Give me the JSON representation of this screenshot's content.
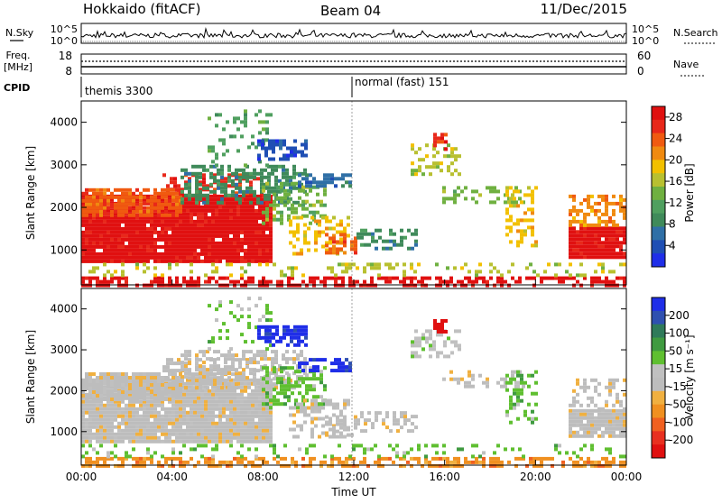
{
  "header": {
    "radar_title": "Hokkaido (fitACF)",
    "beam": "Beam 04",
    "date": "11/Dec/2015"
  },
  "top_panels": {
    "nsky": {
      "label_left": "N.Sky",
      "tick_top": "10^5",
      "tick_bottom": "10^0",
      "label_right": "N.Search",
      "tick_top_right": "10^5",
      "tick_bottom_right": "10^0"
    },
    "freq": {
      "label_left_line1": "Freq.",
      "label_left_line2": "[MHz]",
      "tick_top": "18",
      "tick_bottom": "8",
      "label_right": "Nave",
      "tick_top_right": "60",
      "tick_bottom_right": "0"
    },
    "cpid": {
      "label": "CPID",
      "modes": [
        "themis 3300",
        "normal (fast) 151"
      ]
    }
  },
  "colors": {
    "power": [
      "#1f2ee8",
      "#1f4fb4",
      "#2f6fa6",
      "#3f8a5a",
      "#4f9f5f",
      "#6fb040",
      "#b8c030",
      "#f2c000",
      "#f08a10",
      "#f05a10",
      "#e8281a",
      "#e01010"
    ],
    "velocity": [
      "#1f2ee8",
      "#2f50b0",
      "#2f7a5a",
      "#3f9a40",
      "#5fbf30",
      "#c0c0c0",
      "#bdbdbd",
      "#f0b040",
      "#f09020",
      "#f06020",
      "#e83020",
      "#e01010"
    ]
  },
  "chart_data": [
    {
      "type": "heatmap",
      "title": "Power",
      "xlabel": "",
      "ylabel": "Slant Range [km]",
      "x_ticks": [
        "00:00",
        "04:00",
        "08:00",
        "12:00",
        "16:00",
        "20:00",
        "00:00"
      ],
      "y_ticks": [
        1000,
        2000,
        3000,
        4000
      ],
      "ylim": [
        180,
        4500
      ],
      "colorbar": {
        "label": "Power [dB]",
        "ticks": [
          4,
          8,
          12,
          16,
          20,
          24,
          28
        ],
        "range": [
          0,
          30
        ]
      },
      "grid": false
    },
    {
      "type": "heatmap",
      "title": "Velocity",
      "xlabel": "Time UT",
      "ylabel": "Slant Range [km]",
      "x_ticks": [
        "00:00",
        "04:00",
        "08:00",
        "12:00",
        "16:00",
        "20:00",
        "00:00"
      ],
      "y_ticks": [
        1000,
        2000,
        3000,
        4000
      ],
      "ylim": [
        180,
        4500
      ],
      "colorbar": {
        "label": "Velocity [m s⁻¹]",
        "ticks": [
          200,
          100,
          50,
          15,
          -15,
          -50,
          -100,
          -200
        ],
        "range": [
          -250,
          250
        ]
      },
      "grid": false
    }
  ]
}
